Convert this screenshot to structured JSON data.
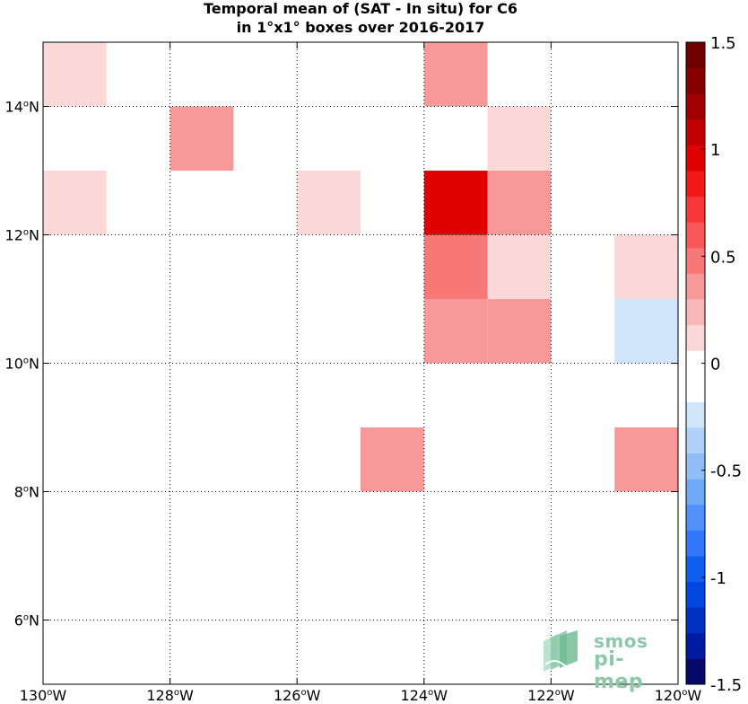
{
  "title_line1": "Temporal mean of (SAT - In situ) for C6",
  "title_line2": "in 1°x1° boxes over 2016-2017",
  "logo": {
    "line1": "smos",
    "line2": "pi-mep",
    "color": "#8cc8a8"
  },
  "chart_data": {
    "type": "heatmap",
    "title": "Temporal mean of (SAT - In situ) for C6 in 1°x1° boxes over 2016-2017",
    "xlim": [
      -130,
      -120
    ],
    "ylim": [
      5,
      15
    ],
    "grid": true,
    "x_ticks": [
      {
        "value": -130,
        "label": "130°W"
      },
      {
        "value": -128,
        "label": "128°W"
      },
      {
        "value": -126,
        "label": "126°W"
      },
      {
        "value": -124,
        "label": "124°W"
      },
      {
        "value": -122,
        "label": "122°W"
      },
      {
        "value": -120,
        "label": "120°W"
      }
    ],
    "y_ticks": [
      {
        "value": 6,
        "label": "6°N"
      },
      {
        "value": 8,
        "label": "8°N"
      },
      {
        "value": 10,
        "label": "10°N"
      },
      {
        "value": 12,
        "label": "12°N"
      },
      {
        "value": 14,
        "label": "14°N"
      }
    ],
    "colorbar": {
      "min": -1.5,
      "max": 1.5,
      "ticks": [
        {
          "value": 1.5,
          "label": "1.5"
        },
        {
          "value": 1,
          "label": "1"
        },
        {
          "value": 0.5,
          "label": "0.5"
        },
        {
          "value": 0,
          "label": "0"
        },
        {
          "value": -0.5,
          "label": "-0.5"
        },
        {
          "value": -1,
          "label": "-1"
        },
        {
          "value": -1.5,
          "label": "-1.5"
        }
      ],
      "colors": [
        "#08086a",
        "#001aa0",
        "#0030c0",
        "#0048e0",
        "#1060f0",
        "#3078f8",
        "#5090f8",
        "#70a8f8",
        "#90bcf8",
        "#b0d0f8",
        "#d0e4fa",
        "#ffffff",
        "#ffffff",
        "#fad8d8",
        "#f8b8b8",
        "#f89898",
        "#f87878",
        "#f85858",
        "#f83838",
        "#f01818",
        "#e00000",
        "#c00000",
        "#a00000",
        "#880000",
        "#700000"
      ]
    },
    "cells": [
      {
        "lon": -130,
        "lat": 14,
        "value": 0.15
      },
      {
        "lon": -124,
        "lat": 14,
        "value": 0.3
      },
      {
        "lon": -123,
        "lat": 14,
        "value": -0.12
      },
      {
        "lon": -121,
        "lat": 14,
        "value": -0.12
      },
      {
        "lon": -128,
        "lat": 13,
        "value": 0.3
      },
      {
        "lon": -123,
        "lat": 13,
        "value": 0.15
      },
      {
        "lon": -130,
        "lat": 12,
        "value": 0.15
      },
      {
        "lon": -127,
        "lat": 12,
        "value": -0.12
      },
      {
        "lon": -126,
        "lat": 12,
        "value": 0.15
      },
      {
        "lon": -124,
        "lat": 12,
        "value": 0.9
      },
      {
        "lon": -123,
        "lat": 12,
        "value": 0.35
      },
      {
        "lon": -124,
        "lat": 11,
        "value": 0.45
      },
      {
        "lon": -123,
        "lat": 11,
        "value": 0.15
      },
      {
        "lon": -121,
        "lat": 11,
        "value": 0.15
      },
      {
        "lon": -125,
        "lat": 10,
        "value": -0.12
      },
      {
        "lon": -124,
        "lat": 10,
        "value": 0.3
      },
      {
        "lon": -123,
        "lat": 10,
        "value": 0.3
      },
      {
        "lon": -121,
        "lat": 10,
        "value": -0.25
      },
      {
        "lon": -125,
        "lat": 8,
        "value": 0.3
      },
      {
        "lon": -121,
        "lat": 8,
        "value": 0.3
      }
    ]
  }
}
